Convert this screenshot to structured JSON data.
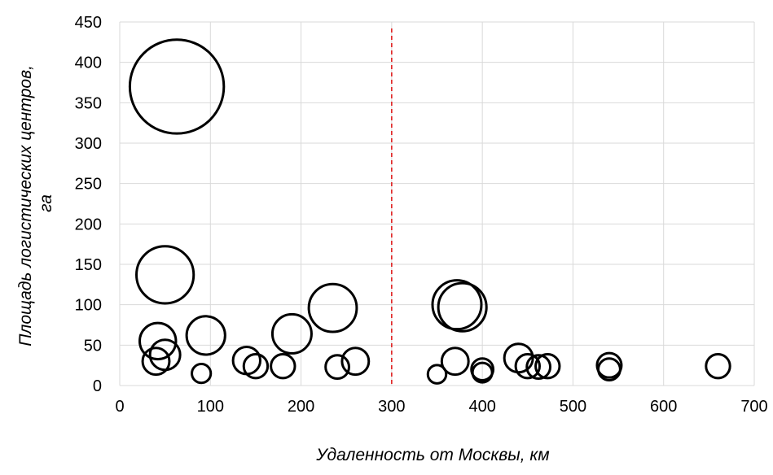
{
  "chart_data": {
    "type": "scatter",
    "subtype": "bubble",
    "title": "",
    "xlabel": "Удаленность от Москвы, км",
    "ylabel": "Площадь логистических центров, га",
    "xlim": [
      0,
      700
    ],
    "ylim": [
      0,
      450
    ],
    "x_ticks": [
      0,
      100,
      200,
      300,
      400,
      500,
      600,
      700
    ],
    "y_ticks": [
      0,
      50,
      100,
      150,
      200,
      250,
      300,
      350,
      400,
      450
    ],
    "grid": true,
    "legend": "none",
    "reference_line": {
      "x": 300,
      "color": "#e02020",
      "style": "dashed"
    },
    "bubble_size_encodes": "y",
    "points": [
      {
        "x": 63,
        "y": 370
      },
      {
        "x": 50,
        "y": 137
      },
      {
        "x": 95,
        "y": 62
      },
      {
        "x": 42,
        "y": 55
      },
      {
        "x": 50,
        "y": 38
      },
      {
        "x": 40,
        "y": 30
      },
      {
        "x": 90,
        "y": 15
      },
      {
        "x": 140,
        "y": 31
      },
      {
        "x": 150,
        "y": 24
      },
      {
        "x": 180,
        "y": 24
      },
      {
        "x": 190,
        "y": 64
      },
      {
        "x": 235,
        "y": 96
      },
      {
        "x": 240,
        "y": 23
      },
      {
        "x": 260,
        "y": 30
      },
      {
        "x": 350,
        "y": 14
      },
      {
        "x": 370,
        "y": 30
      },
      {
        "x": 372,
        "y": 100
      },
      {
        "x": 378,
        "y": 97
      },
      {
        "x": 400,
        "y": 20
      },
      {
        "x": 400,
        "y": 16
      },
      {
        "x": 440,
        "y": 34
      },
      {
        "x": 450,
        "y": 24
      },
      {
        "x": 462,
        "y": 23
      },
      {
        "x": 472,
        "y": 24
      },
      {
        "x": 540,
        "y": 25
      },
      {
        "x": 540,
        "y": 20
      },
      {
        "x": 660,
        "y": 24
      }
    ]
  },
  "colors": {
    "bubble_stroke": "#000000",
    "grid": "#d9d9d9",
    "reference_line": "#e02020"
  }
}
